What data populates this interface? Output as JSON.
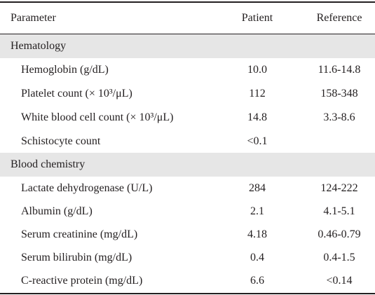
{
  "header": {
    "parameter": "Parameter",
    "patient": "Patient",
    "reference": "Reference"
  },
  "sections": [
    {
      "title": "Hematology",
      "rows": [
        {
          "parameter": "Hemoglobin (g/dL)",
          "patient": "10.0",
          "reference": "11.6-14.8"
        },
        {
          "parameter": "Platelet count (× 10³/μL)",
          "patient": "112",
          "reference": "158-348"
        },
        {
          "parameter": "White blood cell count (× 10³/μL)",
          "patient": "14.8",
          "reference": "3.3-8.6"
        },
        {
          "parameter": "Schistocyte count",
          "patient": "<0.1",
          "reference": ""
        }
      ]
    },
    {
      "title": "Blood chemistry",
      "rows": [
        {
          "parameter": "Lactate dehydrogenase (U/L)",
          "patient": "284",
          "reference": "124-222"
        },
        {
          "parameter": "Albumin (g/dL)",
          "patient": "2.1",
          "reference": "4.1-5.1"
        },
        {
          "parameter": "Serum creatinine (mg/dL)",
          "patient": "4.18",
          "reference": "0.46-0.79"
        },
        {
          "parameter": "Serum bilirubin (mg/dL)",
          "patient": "0.4",
          "reference": "0.4-1.5"
        },
        {
          "parameter": "C-reactive protein (mg/dL)",
          "patient": "6.6",
          "reference": "<0.14"
        }
      ]
    }
  ]
}
